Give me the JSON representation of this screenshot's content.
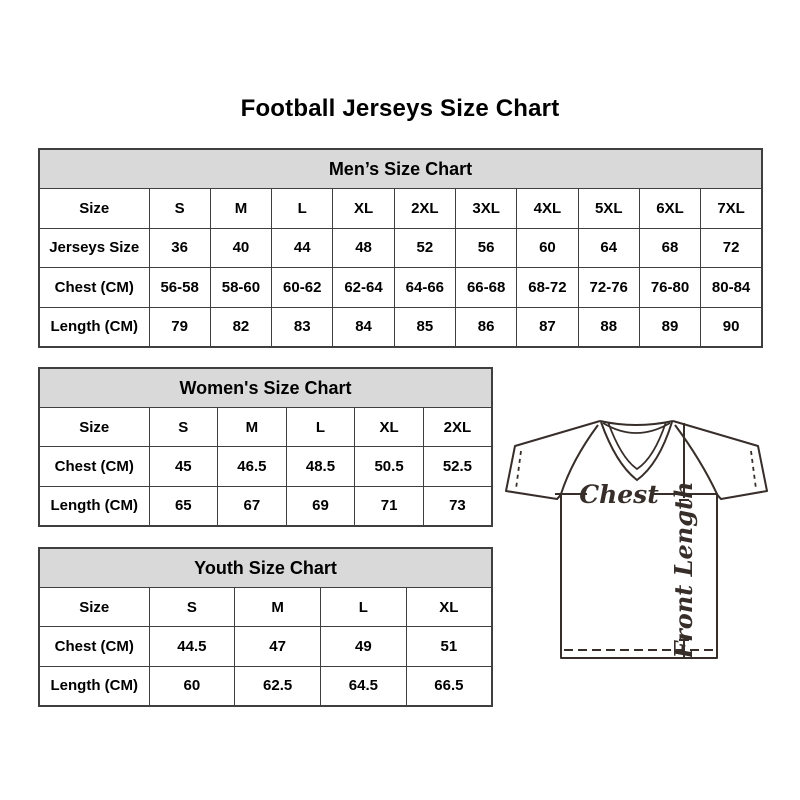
{
  "page": {
    "title": "Football Jerseys Size Chart"
  },
  "colors": {
    "table_header_bg": "#d9d9d9",
    "table_border": "#3f3f3f",
    "text": "#000000",
    "diagram_line": "#372e2a"
  },
  "tables": {
    "men": {
      "header": "Men’s Size Chart",
      "rows": [
        {
          "label": "Size",
          "values": [
            "S",
            "M",
            "L",
            "XL",
            "2XL",
            "3XL",
            "4XL",
            "5XL",
            "6XL",
            "7XL"
          ]
        },
        {
          "label": "Jerseys Size",
          "values": [
            "36",
            "40",
            "44",
            "48",
            "52",
            "56",
            "60",
            "64",
            "68",
            "72"
          ]
        },
        {
          "label": "Chest (CM)",
          "values": [
            "56-58",
            "58-60",
            "60-62",
            "62-64",
            "64-66",
            "66-68",
            "68-72",
            "72-76",
            "76-80",
            "80-84"
          ]
        },
        {
          "label": "Length (CM)",
          "values": [
            "79",
            "82",
            "83",
            "84",
            "85",
            "86",
            "87",
            "88",
            "89",
            "90"
          ]
        }
      ]
    },
    "women": {
      "header": "Women's Size Chart",
      "rows": [
        {
          "label": "Size",
          "values": [
            "S",
            "M",
            "L",
            "XL",
            "2XL"
          ]
        },
        {
          "label": "Chest (CM)",
          "values": [
            "45",
            "46.5",
            "48.5",
            "50.5",
            "52.5"
          ]
        },
        {
          "label": "Length (CM)",
          "values": [
            "65",
            "67",
            "69",
            "71",
            "73"
          ]
        }
      ]
    },
    "youth": {
      "header": "Youth Size Chart",
      "rows": [
        {
          "label": "Size",
          "values": [
            "S",
            "M",
            "L",
            "XL"
          ]
        },
        {
          "label": "Chest (CM)",
          "values": [
            "44.5",
            "47",
            "49",
            "51"
          ]
        },
        {
          "label": "Length (CM)",
          "values": [
            "60",
            "62.5",
            "64.5",
            "66.5"
          ]
        }
      ]
    }
  },
  "diagram": {
    "chest_label": "Chest",
    "front_length_label": "Front Length"
  }
}
